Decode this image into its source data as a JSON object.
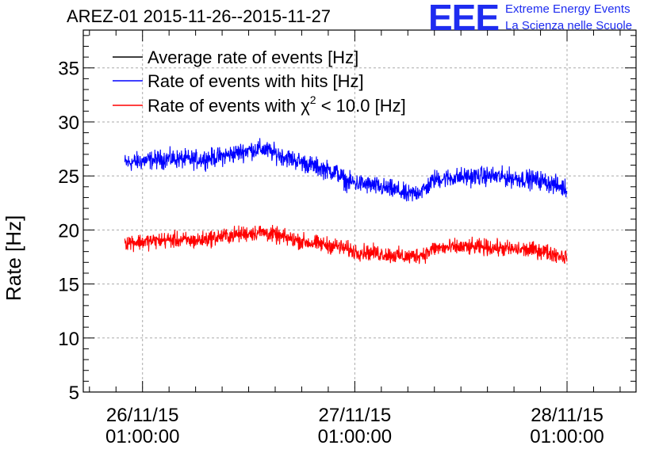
{
  "header": {
    "title": "AREZ-01 2015-11-26--2015-11-27",
    "logo_letters": "EEE",
    "logo_line1": "Extreme Energy Events",
    "logo_line2": "La Scienza nelle Scuole"
  },
  "colors": {
    "black": "#000000",
    "blue": "#0000ff",
    "red": "#ff0000",
    "logo": "#1e2cf0",
    "grid": "#aaaaaa"
  },
  "chart_data": {
    "type": "line",
    "title": "AREZ-01 2015-11-26--2015-11-27",
    "ylabel": "Rate [Hz]",
    "xlabel": "",
    "ylim": [
      5,
      38.5
    ],
    "xlim_hours": [
      -6.7,
      55.8
    ],
    "y_ticks": [
      5,
      10,
      15,
      20,
      25,
      30,
      35
    ],
    "x_ticks": [
      {
        "hour": 0,
        "line1": "26/11/15",
        "line2": "01:00:00"
      },
      {
        "hour": 24,
        "line1": "27/11/15",
        "line2": "01:00:00"
      },
      {
        "hour": 48,
        "line1": "28/11/15",
        "line2": "01:00:00"
      }
    ],
    "grid": true,
    "legend_position": "top-left",
    "legend": [
      {
        "label": "Average rate of events [Hz]",
        "color": "#000000"
      },
      {
        "label": "Rate of events with hits [Hz]",
        "color": "#0000ff"
      },
      {
        "label_prefix": "Rate of events with ",
        "label_symbol": "χ",
        "label_sup": "2",
        "label_suffix": " < 10.0 [Hz]",
        "color": "#ff0000"
      }
    ],
    "series": [
      {
        "name": "Rate of events with hits [Hz]",
        "color": "#0000ff",
        "x_hours": [
          -2,
          0,
          3,
          6,
          9,
          12,
          13.5,
          16,
          19,
          22,
          23,
          26,
          29,
          30,
          32,
          33,
          36,
          39,
          42,
          45,
          48
        ],
        "values": [
          26.2,
          26.4,
          26.6,
          26.5,
          26.8,
          27.4,
          27.5,
          26.8,
          26.0,
          25.3,
          24.5,
          24.1,
          23.6,
          23.2,
          23.8,
          24.7,
          24.9,
          25.0,
          24.8,
          24.6,
          23.8
        ],
        "noise": 0.75
      },
      {
        "name": "Rate of events with χ2 < 10.0 [Hz]",
        "color": "#ff0000",
        "x_hours": [
          -2,
          0,
          3,
          6,
          9,
          12,
          13.5,
          16,
          19,
          22,
          24,
          26,
          29,
          30,
          32,
          33,
          36,
          39,
          42,
          45,
          48
        ],
        "values": [
          18.9,
          18.9,
          19.1,
          19.0,
          19.4,
          19.7,
          19.8,
          19.3,
          18.8,
          18.5,
          18.0,
          17.9,
          17.6,
          17.5,
          17.8,
          18.3,
          18.4,
          18.4,
          18.2,
          18.1,
          17.5
        ],
        "noise": 0.65
      }
    ]
  }
}
